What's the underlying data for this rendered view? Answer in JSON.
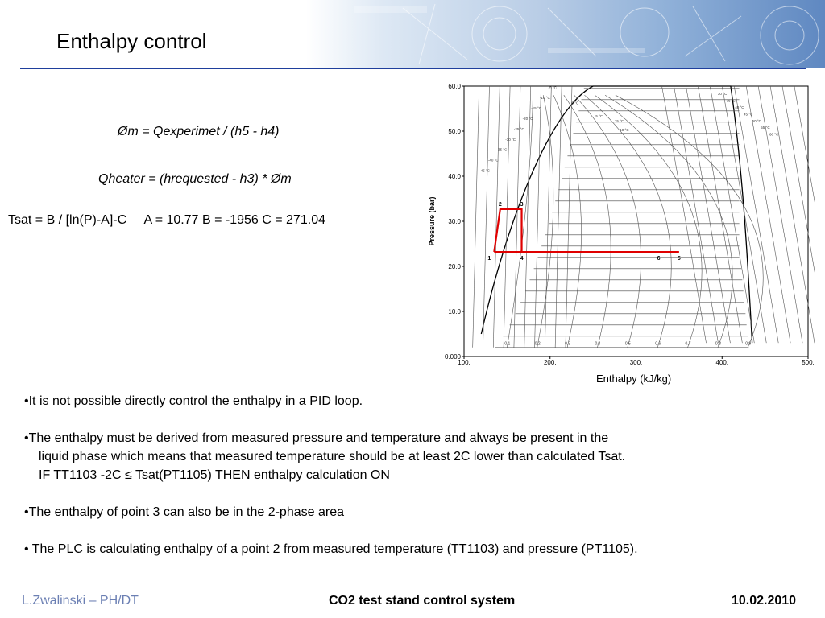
{
  "title": "Enthalpy control",
  "formulas": {
    "mass_flow": "Øm = Qexperimet / (h5 - h4)",
    "heater": "Qheater = (hrequested - h3) * Øm",
    "tsat": "Tsat = B / [ln(P)-A]-C",
    "constants": "A = 10.77  B = -1956  C = 271.04"
  },
  "bullets": {
    "b1": "•It is not possible directly control the enthalpy in a PID loop.",
    "b2_line1": "•The enthalpy must be derived from measured pressure and temperature and always be present in the",
    "b2_line2": "liquid phase which means that measured temperature should be at least 2C lower than calculated Tsat.",
    "b2_line3": "IF TT1103 -2C ≤ Tsat(PT1105) THEN enthalpy calculation ON",
    "b3": "•The enthalpy of point 3 can also be in the 2-phase area",
    "b4": "• The PLC is calculating enthalpy of a point 2 from measured temperature (TT1103) and pressure (PT1105)."
  },
  "footer": {
    "left": "L.Zwalinski – PH/DT",
    "center": "CO2 test stand control system",
    "right": "10.02.2010"
  },
  "colors": {
    "title_rule": "#1f3f9c",
    "footer_left": "#6b7fb3",
    "cycle_line": "#e00000"
  },
  "chart_data": {
    "type": "line",
    "title": "",
    "xlabel": "Enthalpy (kJ/kg)",
    "ylabel": "Pressure (bar)",
    "xlim": [
      100,
      500
    ],
    "ylim": [
      0,
      60
    ],
    "x_ticks": [
      "100.",
      "200.",
      "300.",
      "400.",
      "500."
    ],
    "y_ticks": [
      "0.000",
      "10.0",
      "20.0",
      "30.0",
      "40.0",
      "50.0",
      "60.0"
    ],
    "grid": true,
    "quality_labels": [
      "0.1",
      "0.2",
      "0.3",
      "0.4",
      "0.5",
      "0.6",
      "0.7",
      "0.8",
      "0.9"
    ],
    "isotherm_labels": [
      "-45 °C",
      "-40 °C",
      "-35 °C",
      "-30 °C",
      "-25 °C",
      "-20 °C",
      "-15 °C",
      "-10 °C",
      "-5 °C",
      "0 °C",
      "5 °C",
      "10 °C",
      "15 °C",
      "30 °C",
      "35 °C",
      "40 °C",
      "45 °C",
      "50 °C",
      "55 °C",
      "60 °C"
    ],
    "cycle": {
      "color": "#e00000",
      "points": [
        {
          "label": "1",
          "h": 135,
          "p": 23.2
        },
        {
          "label": "2",
          "h": 142,
          "p": 32.7
        },
        {
          "label": "3",
          "h": 167,
          "p": 32.7
        },
        {
          "label": "4",
          "h": 167,
          "p": 23.2
        },
        {
          "label": "6",
          "h": 330,
          "p": 23.2
        },
        {
          "label": "5",
          "h": 350,
          "p": 23.2
        }
      ]
    }
  }
}
